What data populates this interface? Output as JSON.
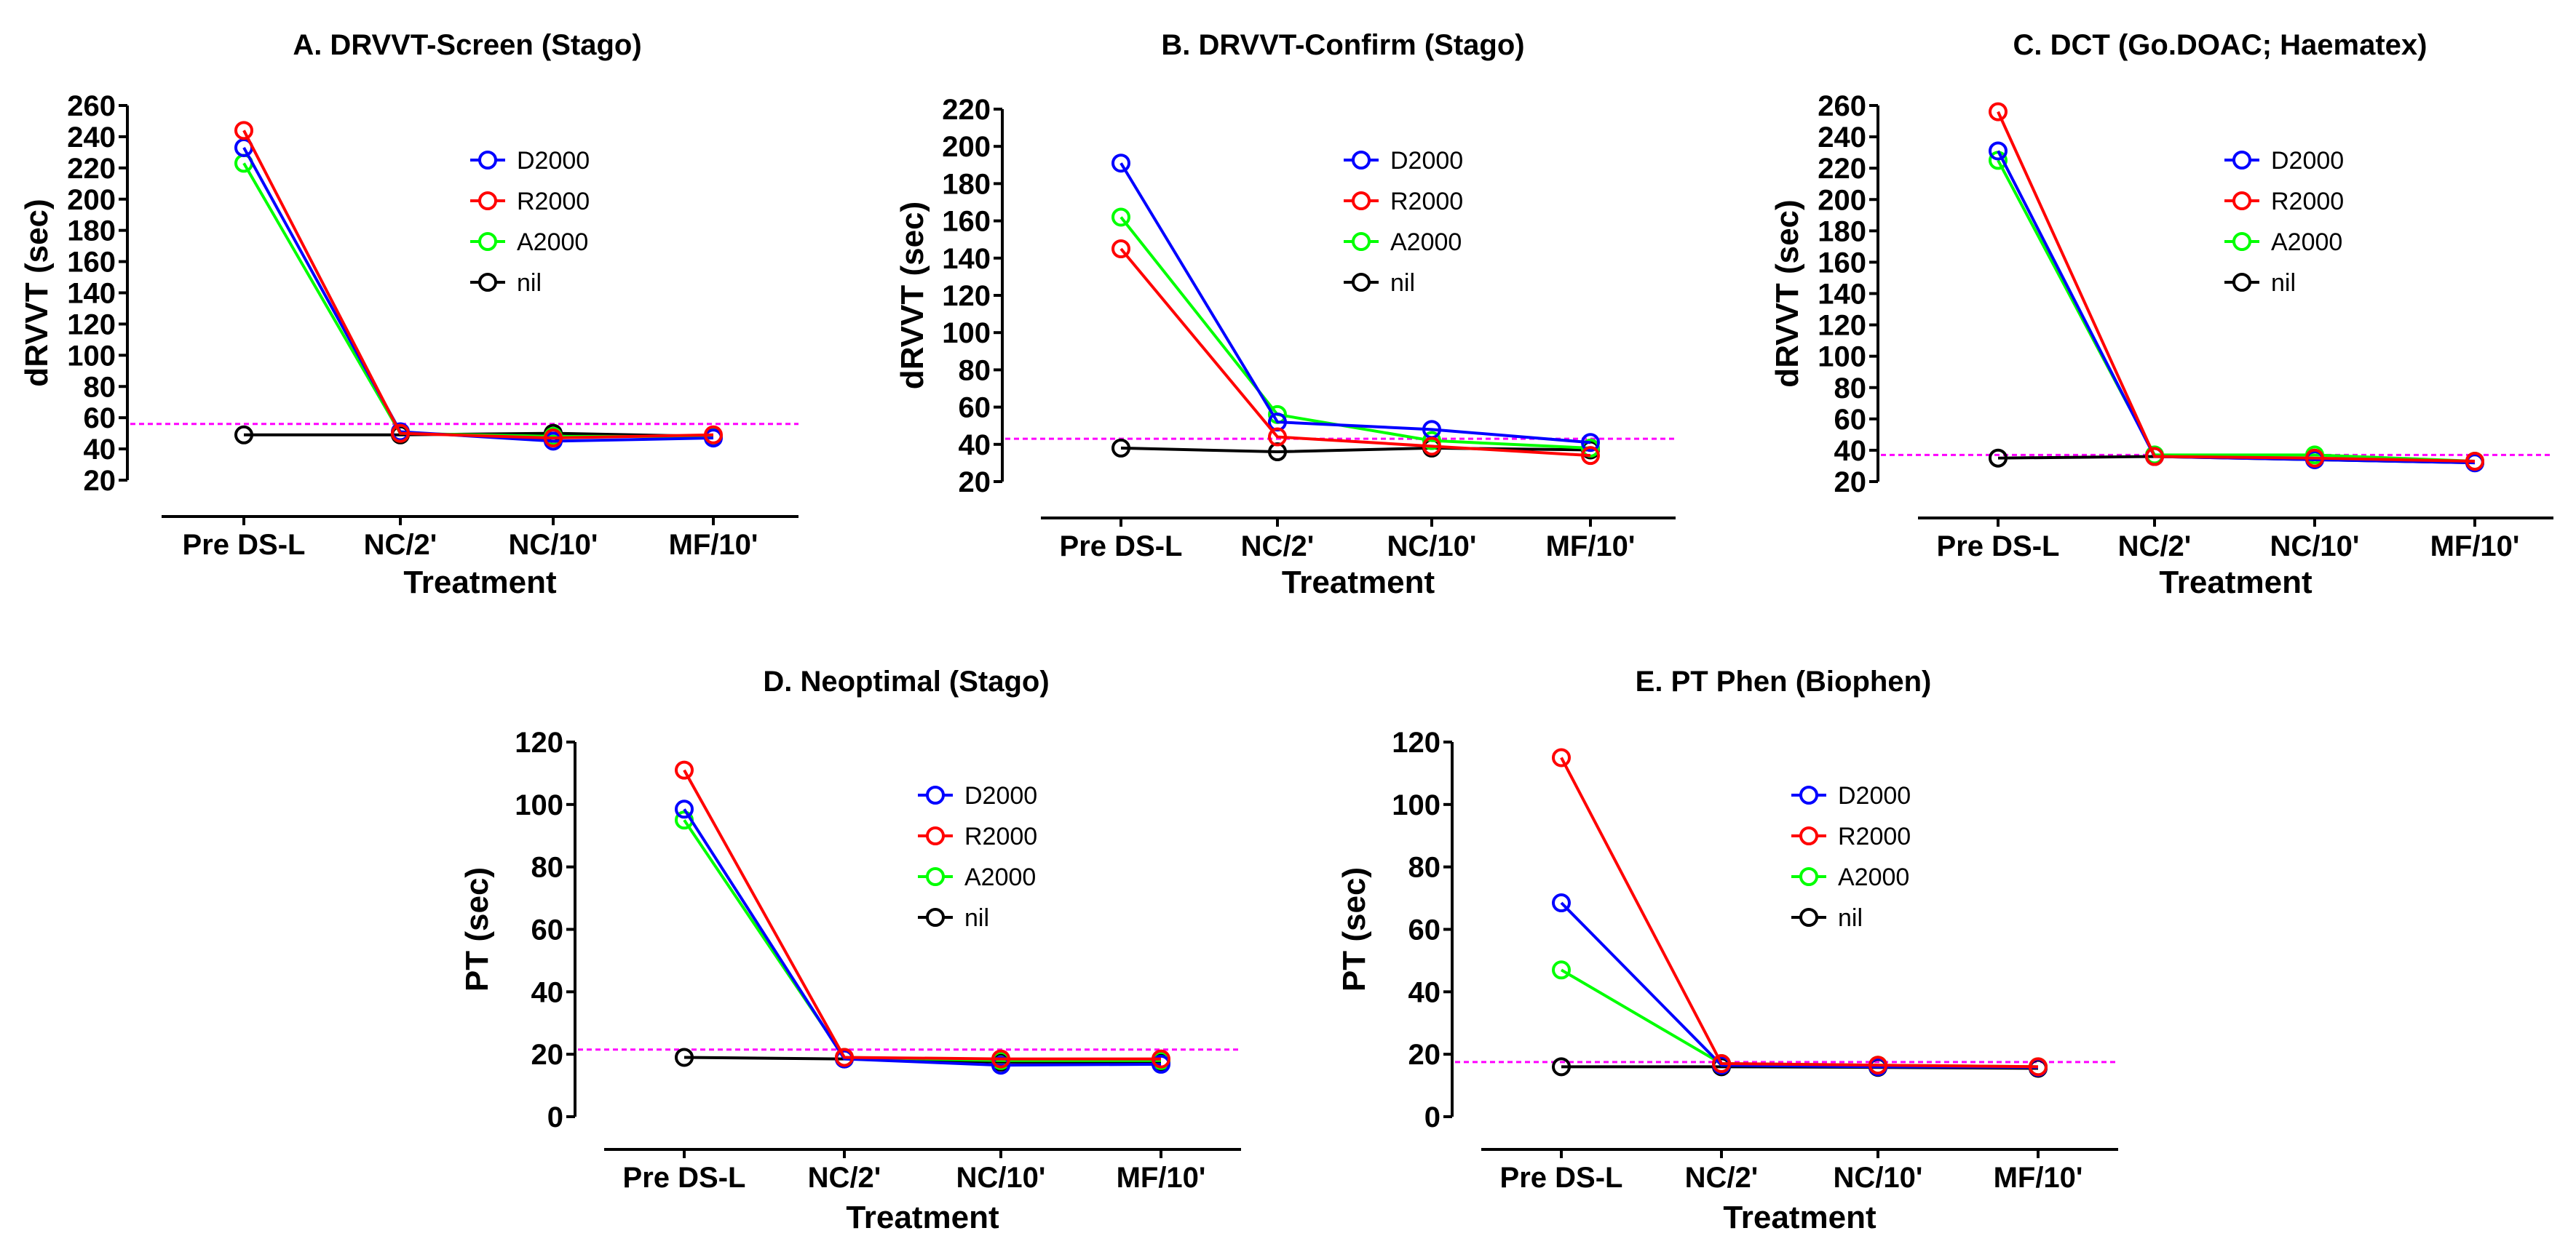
{
  "colors": {
    "D2000": "#0000ff",
    "R2000": "#ff0000",
    "A2000": "#00ff00",
    "nil": "#000000",
    "reference": "#ff00ff"
  },
  "chart_data": [
    {
      "id": "A",
      "type": "line",
      "title": "A. DRVVT-Screen (Stago)",
      "xlabel": "Treatment",
      "ylabel": "dRVVT (sec)",
      "categories": [
        "Pre DS-L",
        "NC/2'",
        "NC/10'",
        "MF/10'"
      ],
      "ylim": [
        20,
        260
      ],
      "yticks": [
        "20",
        "40",
        "60",
        "80",
        "100",
        "120",
        "140",
        "160",
        "180",
        "200",
        "220",
        "240",
        "260"
      ],
      "reference_line": 56,
      "legend": [
        "D2000",
        "R2000",
        "A2000",
        "nil"
      ],
      "series": [
        {
          "name": "D2000",
          "values": [
            233,
            51,
            45,
            47
          ]
        },
        {
          "name": "R2000",
          "values": [
            244,
            50,
            47,
            49
          ]
        },
        {
          "name": "A2000",
          "values": [
            223,
            50,
            48,
            48
          ]
        },
        {
          "name": "nil",
          "values": [
            49,
            49,
            50,
            48
          ]
        }
      ]
    },
    {
      "id": "B",
      "type": "line",
      "title": "B. DRVVT-Confirm (Stago)",
      "xlabel": "Treatment",
      "ylabel": "dRVVT (sec)",
      "categories": [
        "Pre DS-L",
        "NC/2'",
        "NC/10'",
        "MF/10'"
      ],
      "ylim": [
        20,
        220
      ],
      "yticks": [
        "20",
        "40",
        "60",
        "80",
        "100",
        "120",
        "140",
        "160",
        "180",
        "200",
        "220"
      ],
      "reference_line": 43,
      "legend": [
        "D2000",
        "R2000",
        "A2000",
        "nil"
      ],
      "series": [
        {
          "name": "D2000",
          "values": [
            191,
            52,
            48,
            41
          ]
        },
        {
          "name": "R2000",
          "values": [
            145,
            44,
            39,
            34
          ]
        },
        {
          "name": "A2000",
          "values": [
            162,
            56,
            42,
            38
          ]
        },
        {
          "name": "nil",
          "values": [
            38,
            36,
            38,
            37
          ]
        }
      ]
    },
    {
      "id": "C",
      "type": "line",
      "title": "C. DCT (Go.DOAC; Haematex)",
      "xlabel": "Treatment",
      "ylabel": "dRVVT (sec)",
      "categories": [
        "Pre DS-L",
        "NC/2'",
        "NC/10'",
        "MF/10'"
      ],
      "ylim": [
        20,
        260
      ],
      "yticks": [
        "20",
        "40",
        "60",
        "80",
        "100",
        "120",
        "140",
        "160",
        "180",
        "200",
        "220",
        "240",
        "260"
      ],
      "reference_line": 37,
      "legend": [
        "D2000",
        "R2000",
        "A2000",
        "nil"
      ],
      "series": [
        {
          "name": "D2000",
          "values": [
            231,
            36,
            34,
            32
          ]
        },
        {
          "name": "R2000",
          "values": [
            256,
            36,
            35,
            33
          ]
        },
        {
          "name": "A2000",
          "values": [
            225,
            37,
            37,
            33
          ]
        },
        {
          "name": "nil",
          "values": [
            35,
            36,
            34,
            32
          ]
        }
      ]
    },
    {
      "id": "D",
      "type": "line",
      "title": "D. Neoptimal (Stago)",
      "xlabel": "Treatment",
      "ylabel": "PT (sec)",
      "categories": [
        "Pre DS-L",
        "NC/2'",
        "NC/10'",
        "MF/10'"
      ],
      "ylim": [
        0,
        120
      ],
      "yticks": [
        "0",
        "20",
        "40",
        "60",
        "80",
        "100",
        "120"
      ],
      "reference_line": 21.5,
      "legend": [
        "D2000",
        "R2000",
        "A2000",
        "nil"
      ],
      "series": [
        {
          "name": "D2000",
          "values": [
            98.5,
            18.5,
            16.5,
            16.8
          ]
        },
        {
          "name": "R2000",
          "values": [
            111,
            19,
            18.5,
            18.5
          ]
        },
        {
          "name": "A2000",
          "values": [
            95,
            19,
            18,
            18
          ]
        },
        {
          "name": "nil",
          "values": [
            19,
            18.5,
            17.5,
            17.5
          ]
        }
      ]
    },
    {
      "id": "E",
      "type": "line",
      "title": "E. PT Phen (Biophen)",
      "xlabel": "Treatment",
      "ylabel": "PT (sec)",
      "categories": [
        "Pre DS-L",
        "NC/2'",
        "NC/10'",
        "MF/10'"
      ],
      "ylim": [
        0,
        120
      ],
      "yticks": [
        "0",
        "20",
        "40",
        "60",
        "80",
        "100",
        "120"
      ],
      "reference_line": 17.5,
      "legend": [
        "D2000",
        "R2000",
        "A2000",
        "nil"
      ],
      "series": [
        {
          "name": "D2000",
          "values": [
            68.5,
            16.5,
            16,
            15.8
          ]
        },
        {
          "name": "R2000",
          "values": [
            115,
            17,
            16.5,
            16
          ]
        },
        {
          "name": "A2000",
          "values": [
            47,
            17,
            16.5,
            16
          ]
        },
        {
          "name": "nil",
          "values": [
            16,
            16,
            15.8,
            15.5
          ]
        }
      ]
    }
  ]
}
